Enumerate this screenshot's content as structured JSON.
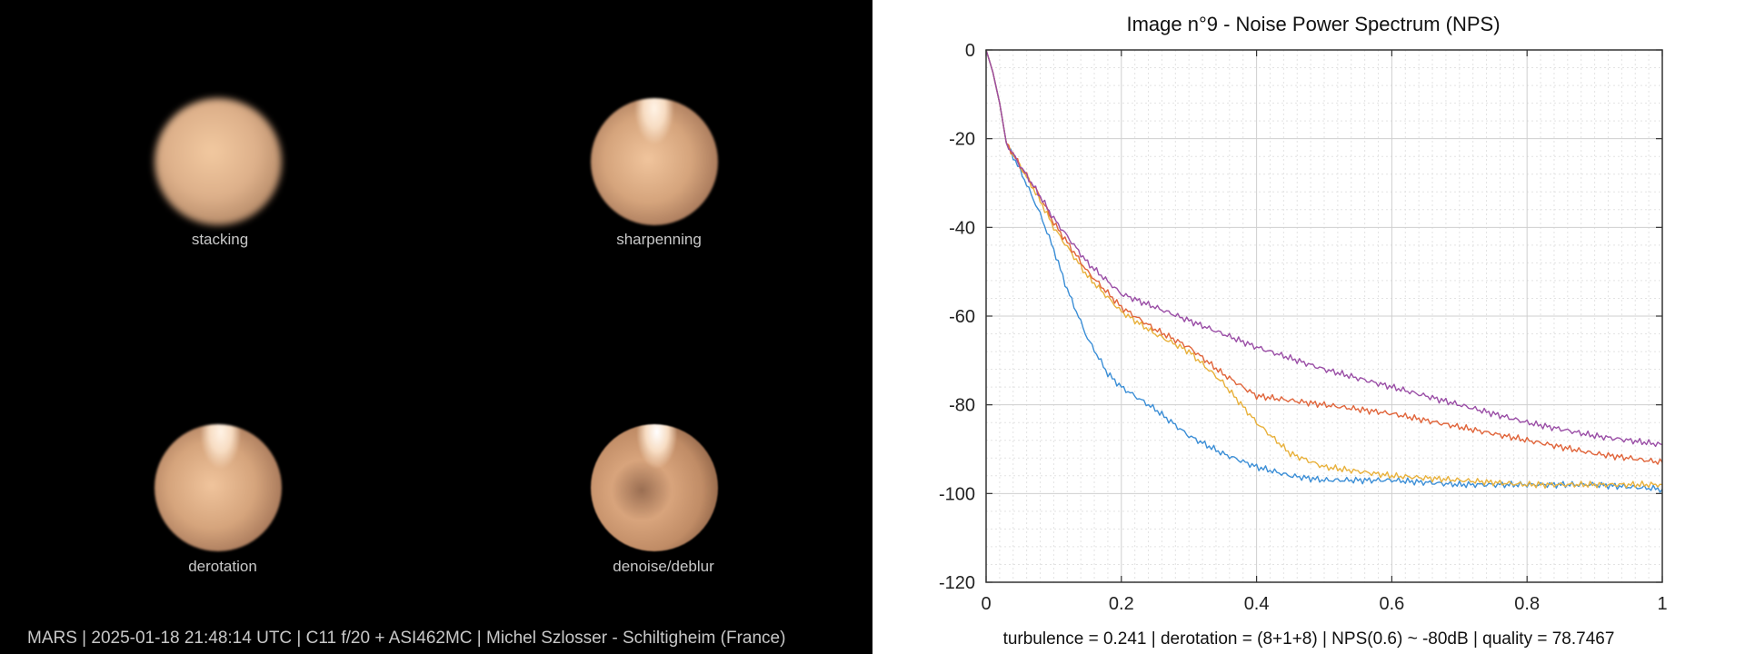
{
  "panels": {
    "stacking": "stacking",
    "sharpenning": "sharpenning",
    "derotation": "derotation",
    "denoise": "denoise/deblur"
  },
  "footer_left": "MARS | 2025-01-18  21:48:14 UTC | C11 f/20 + ASI462MC | Michel Szlosser - Schiltigheim (France)",
  "footer_right": "turbulence = 0.241 | derotation = (8+1+8) | NPS(0.6) ~ -80dB |  quality = 78.7467",
  "colors": {
    "blue": "#3b8ed6",
    "yellow": "#e8b13c",
    "orange": "#e0643a",
    "purple": "#9a4ea6"
  },
  "chart_data": {
    "type": "line",
    "title": "Image n°9 - Noise Power Spectrum (NPS)",
    "xlabel": "",
    "ylabel": "",
    "xlim": [
      0,
      1
    ],
    "ylim": [
      -120,
      0
    ],
    "xticks": [
      "0",
      "0.2",
      "0.4",
      "0.6",
      "0.8",
      "1"
    ],
    "yticks": [
      "0",
      "-20",
      "-40",
      "-60",
      "-80",
      "-100",
      "-120"
    ],
    "grid": true,
    "minor_grid": true,
    "series": [
      {
        "color": "blue",
        "x": [
          0,
          0.01,
          0.02,
          0.03,
          0.05,
          0.08,
          0.1,
          0.12,
          0.15,
          0.18,
          0.2,
          0.25,
          0.3,
          0.35,
          0.4,
          0.45,
          0.5,
          0.6,
          0.7,
          0.8,
          0.9,
          1.0
        ],
        "y": [
          0,
          -5,
          -12,
          -21,
          -27,
          -37,
          -45,
          -54,
          -65,
          -73,
          -76,
          -81,
          -87,
          -91,
          -94,
          -96,
          -97,
          -97,
          -98,
          -98,
          -98,
          -99
        ]
      },
      {
        "color": "yellow",
        "x": [
          0,
          0.01,
          0.02,
          0.03,
          0.05,
          0.08,
          0.1,
          0.15,
          0.2,
          0.25,
          0.3,
          0.35,
          0.4,
          0.45,
          0.5,
          0.55,
          0.6,
          0.7,
          0.8,
          0.9,
          1.0
        ],
        "y": [
          0,
          -5,
          -12,
          -21,
          -26,
          -34,
          -40,
          -51,
          -59,
          -64,
          -68,
          -75,
          -84,
          -91,
          -94,
          -95,
          -96,
          -97,
          -98,
          -98,
          -98
        ]
      },
      {
        "color": "orange",
        "x": [
          0,
          0.01,
          0.02,
          0.03,
          0.05,
          0.08,
          0.1,
          0.15,
          0.2,
          0.25,
          0.3,
          0.35,
          0.4,
          0.5,
          0.6,
          0.7,
          0.8,
          0.9,
          1.0
        ],
        "y": [
          0,
          -5,
          -12,
          -21,
          -26,
          -33,
          -39,
          -50,
          -58,
          -63,
          -67,
          -73,
          -78,
          -80,
          -82,
          -85,
          -88,
          -91,
          -93
        ]
      },
      {
        "color": "purple",
        "x": [
          0,
          0.01,
          0.02,
          0.03,
          0.05,
          0.08,
          0.1,
          0.15,
          0.2,
          0.25,
          0.3,
          0.4,
          0.5,
          0.6,
          0.7,
          0.8,
          0.9,
          1.0
        ],
        "y": [
          0,
          -5,
          -12,
          -21,
          -26,
          -33,
          -38,
          -48,
          -55,
          -58,
          -61,
          -67,
          -72,
          -76,
          -80,
          -84,
          -87,
          -89
        ]
      }
    ]
  }
}
